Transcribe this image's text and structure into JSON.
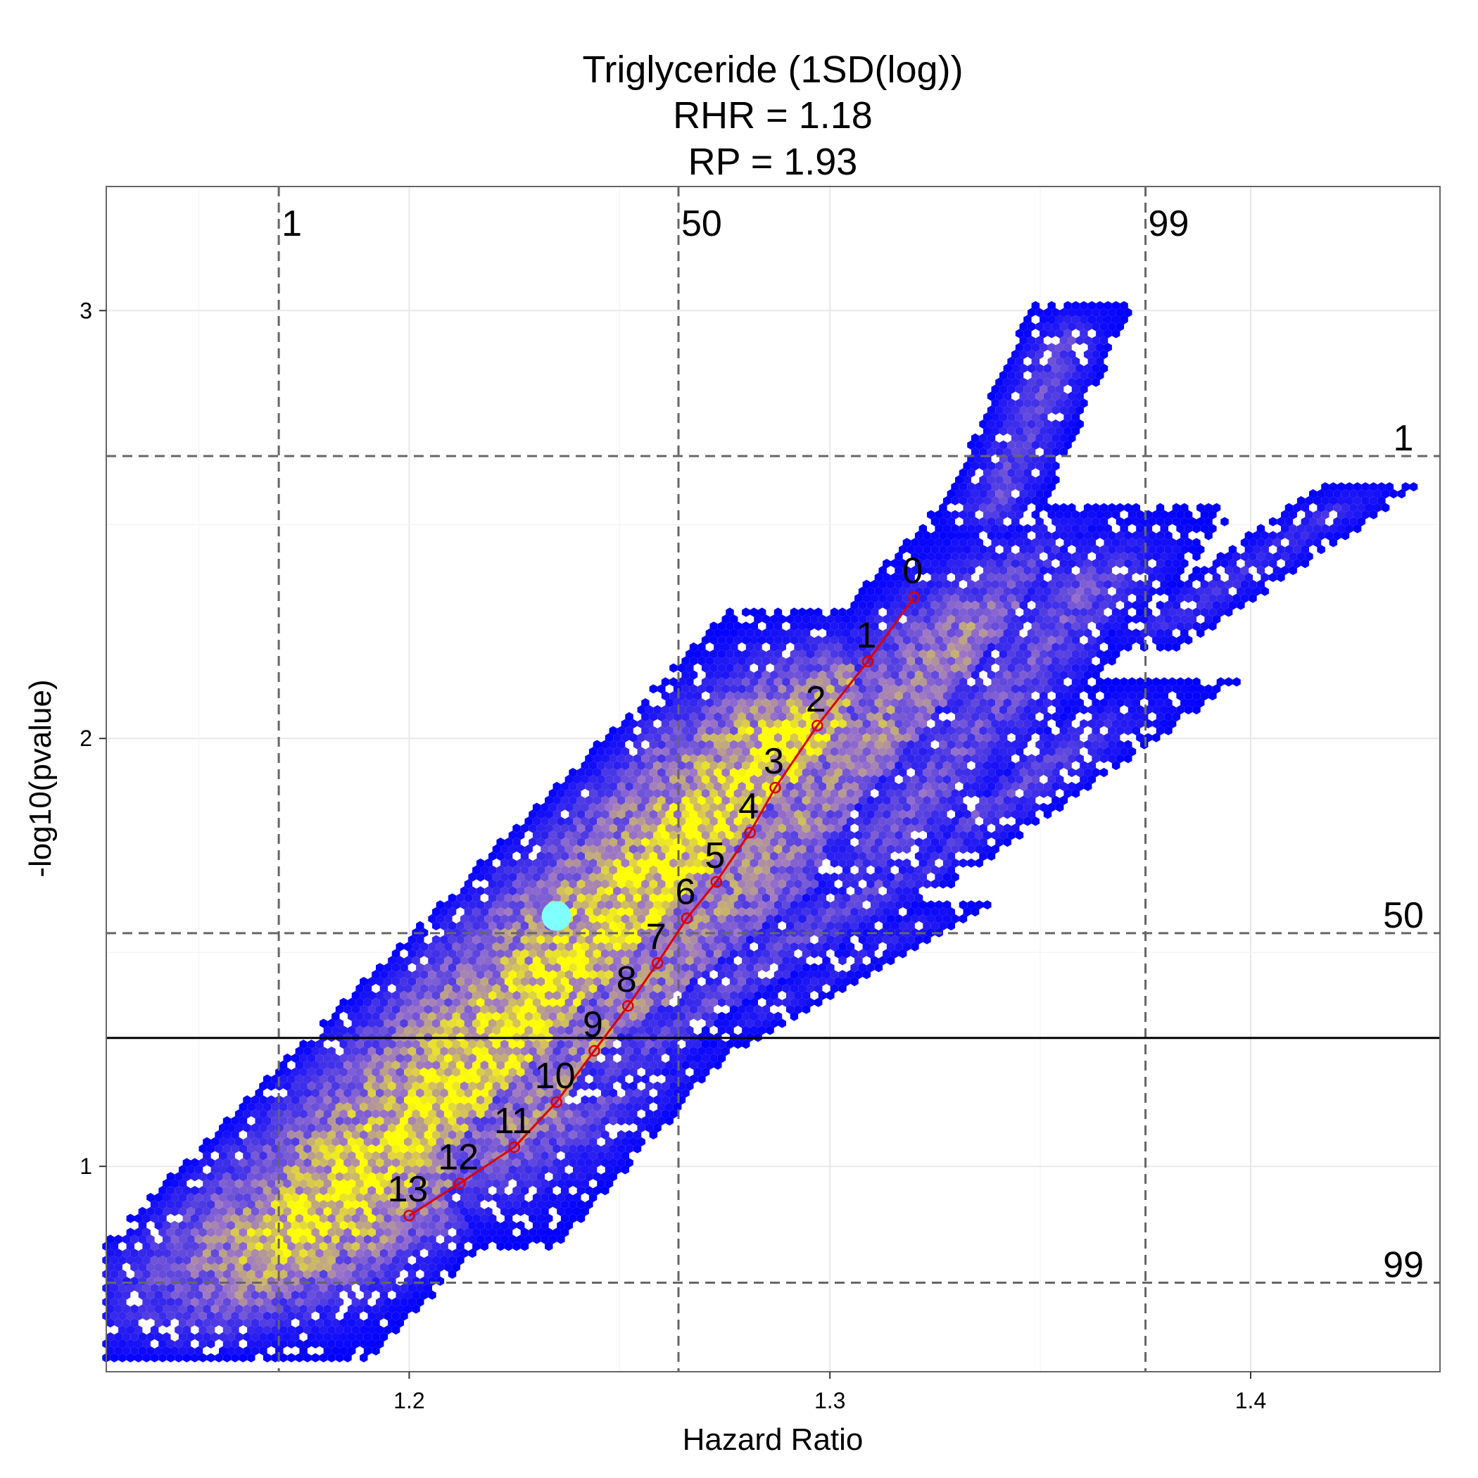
{
  "chart_data": {
    "type": "scatter",
    "title_lines": [
      "Triglyceride (1SD(log))",
      "RHR = 1.18",
      "RP = 1.93"
    ],
    "xlabel": "Hazard Ratio",
    "ylabel": "-log10(pvalue)",
    "xlim": [
      1.128,
      1.445
    ],
    "ylim": [
      0.52,
      3.29
    ],
    "x_ticks": [
      {
        "value": 1.2,
        "label": "1.2"
      },
      {
        "value": 1.3,
        "label": "1.3"
      },
      {
        "value": 1.4,
        "label": "1.4"
      }
    ],
    "y_ticks": [
      {
        "value": 1,
        "label": "1"
      },
      {
        "value": 2,
        "label": "2"
      },
      {
        "value": 3,
        "label": "3"
      }
    ],
    "grid": true,
    "percentile_lines_x": [
      {
        "value": 1.169,
        "label": "1"
      },
      {
        "value": 1.264,
        "label": "50"
      },
      {
        "value": 1.375,
        "label": "99"
      }
    ],
    "percentile_lines_y": [
      {
        "value": 2.66,
        "label": "1"
      },
      {
        "value": 1.545,
        "label": "50"
      },
      {
        "value": 0.728,
        "label": "99"
      }
    ],
    "significance_line_y": 1.3,
    "reference_point": {
      "x": 1.235,
      "y": 1.585
    },
    "trajectory": [
      {
        "label": "0",
        "x": 1.32,
        "y": 2.33
      },
      {
        "label": "1",
        "x": 1.309,
        "y": 2.18
      },
      {
        "label": "2",
        "x": 1.297,
        "y": 2.03
      },
      {
        "label": "3",
        "x": 1.287,
        "y": 1.885
      },
      {
        "label": "4",
        "x": 1.281,
        "y": 1.78
      },
      {
        "label": "5",
        "x": 1.273,
        "y": 1.665
      },
      {
        "label": "6",
        "x": 1.266,
        "y": 1.58
      },
      {
        "label": "7",
        "x": 1.259,
        "y": 1.475
      },
      {
        "label": "8",
        "x": 1.252,
        "y": 1.375
      },
      {
        "label": "9",
        "x": 1.244,
        "y": 1.27
      },
      {
        "label": "10",
        "x": 1.235,
        "y": 1.15
      },
      {
        "label": "11",
        "x": 1.225,
        "y": 1.045
      },
      {
        "label": "12",
        "x": 1.212,
        "y": 0.96
      },
      {
        "label": "13",
        "x": 1.2,
        "y": 0.885
      }
    ],
    "density_bands": [
      {
        "x0": 1.145,
        "y0": 0.545,
        "x1": 1.322,
        "y1": 2.31,
        "width": 0.045,
        "peak": 0.95
      },
      {
        "x0": 1.2,
        "y0": 0.8,
        "x1": 1.36,
        "y1": 2.55,
        "width": 0.034,
        "peak": 0.55
      },
      {
        "x0": 1.225,
        "y0": 1.06,
        "x1": 1.38,
        "y1": 2.14,
        "width": 0.018,
        "peak": 0.3
      },
      {
        "x0": 1.3,
        "y0": 1.6,
        "x1": 1.375,
        "y1": 2.52,
        "width": 0.02,
        "peak": 0.35
      },
      {
        "x0": 1.37,
        "y0": 2.2,
        "x1": 1.43,
        "y1": 2.6,
        "width": 0.012,
        "peak": 0.2
      },
      {
        "x0": 1.335,
        "y0": 2.45,
        "x1": 1.36,
        "y1": 3.02,
        "width": 0.012,
        "peak": 0.3
      },
      {
        "x0": 1.27,
        "y0": 1.28,
        "x1": 1.33,
        "y1": 1.62,
        "width": 0.01,
        "peak": 0.15
      }
    ],
    "colors": {
      "low": "#0000ff",
      "mid": "#9b74c9",
      "high": "#ffff00",
      "trajectory": "#dd0000",
      "reference_point": "#80ffff",
      "percentile_line": "#666666",
      "significance_line": "#000000"
    }
  }
}
